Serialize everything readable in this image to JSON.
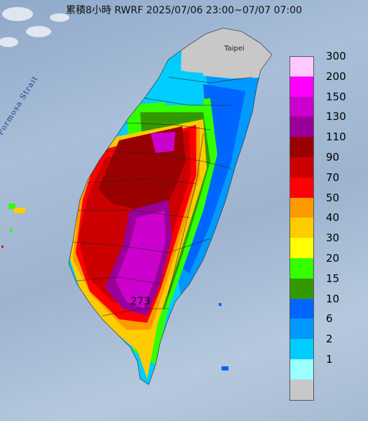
{
  "title": "累積8小時 RWRF 2025/07/06 23:00~07/07 07:00",
  "strait_label": "Formosa Strait",
  "city_label": "Taipei",
  "max_value": "273",
  "legend": {
    "items": [
      {
        "label": "300",
        "color": "#ffc8ff"
      },
      {
        "label": "200",
        "color": "#ff00ff"
      },
      {
        "label": "150",
        "color": "#cc00cc"
      },
      {
        "label": "130",
        "color": "#990099"
      },
      {
        "label": "110",
        "color": "#990000"
      },
      {
        "label": "90",
        "color": "#cc0000"
      },
      {
        "label": "70",
        "color": "#ff0000"
      },
      {
        "label": "50",
        "color": "#ff9900"
      },
      {
        "label": "40",
        "color": "#ffcc00"
      },
      {
        "label": "30",
        "color": "#ffff00"
      },
      {
        "label": "20",
        "color": "#33ff00"
      },
      {
        "label": "15",
        "color": "#339900"
      },
      {
        "label": "10",
        "color": "#0066ff"
      },
      {
        "label": "6",
        "color": "#0099ff"
      },
      {
        "label": "2",
        "color": "#00ccff"
      },
      {
        "label": "1",
        "color": "#99ffff"
      },
      {
        "label": "",
        "color": "#c8c8c8"
      }
    ]
  }
}
